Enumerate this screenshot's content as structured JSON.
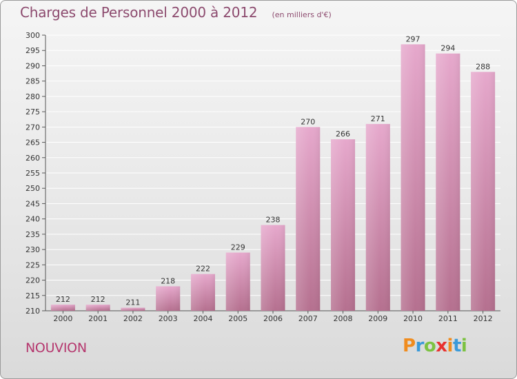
{
  "header": {
    "title": "Charges de Personnel 2000 à 2012",
    "subtitle": "(en milliers d'€)"
  },
  "footer": {
    "place": "NOUVION",
    "logo_text": "Proxiti"
  },
  "colors": {
    "title": "#8c4a6e",
    "place": "#b5376e",
    "bar_top": "#e6a8cc",
    "bar_bottom": "#b5708f",
    "grid": "#ffffff",
    "logo": [
      "#f08c1e",
      "#3a9ad9",
      "#7cc242",
      "#e8312f",
      "#f08c1e",
      "#3a9ad9",
      "#7cc242"
    ]
  },
  "chart_data": {
    "type": "bar",
    "title": "Charges de Personnel 2000 à 2012",
    "subtitle": "(en milliers d'€)",
    "categories": [
      "2000",
      "2001",
      "2002",
      "2003",
      "2004",
      "2005",
      "2006",
      "2007",
      "2008",
      "2009",
      "2010",
      "2011",
      "2012"
    ],
    "values": [
      212,
      212,
      211,
      218,
      222,
      229,
      238,
      270,
      266,
      271,
      297,
      294,
      288
    ],
    "ylim": [
      210,
      300
    ],
    "yticks": [
      210,
      215,
      220,
      225,
      230,
      235,
      240,
      245,
      250,
      255,
      260,
      265,
      270,
      275,
      280,
      285,
      290,
      295,
      300
    ],
    "grid": true,
    "data_labels": true
  }
}
